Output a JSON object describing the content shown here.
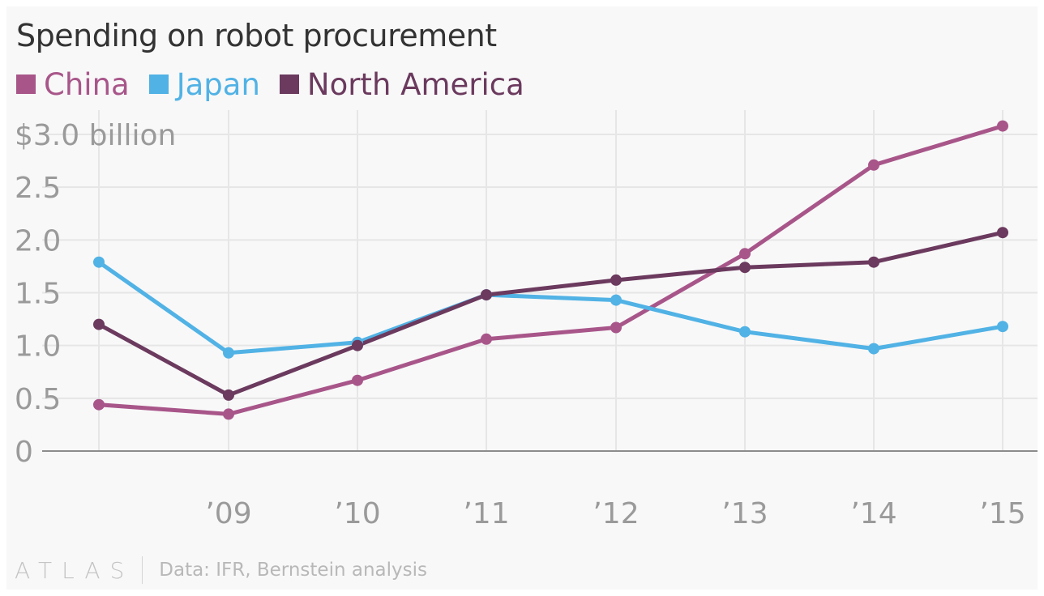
{
  "title": "Spending on robot procurement",
  "legend": [
    {
      "label": "China",
      "color": "#a8568a"
    },
    {
      "label": "Japan",
      "color": "#51b2e5"
    },
    {
      "label": "North America",
      "color": "#6b3a5e"
    }
  ],
  "footer": {
    "logo": "ATLAS",
    "source": "Data: IFR, Bernstein analysis"
  },
  "chart_data": {
    "type": "line",
    "title": "Spending on robot procurement",
    "xlabel": "",
    "ylabel": "",
    "x": [
      "2008",
      "2009",
      "2010",
      "2011",
      "2012",
      "2013",
      "2014",
      "2015"
    ],
    "x_tick_labels": [
      "",
      "’09",
      "’10",
      "’11",
      "’12",
      "’13",
      "’14",
      "’15"
    ],
    "y_tick_values": [
      0,
      0.5,
      1.0,
      1.5,
      2.0,
      2.5,
      3.0
    ],
    "y_tick_labels": [
      "0",
      "0.5",
      "1.0",
      "1.5",
      "2.0",
      "2.5",
      "$3.0 billion"
    ],
    "ylim": [
      0,
      3.0
    ],
    "grid": true,
    "legend_position": "top-left",
    "series": [
      {
        "name": "China",
        "color": "#a8568a",
        "values": [
          0.44,
          0.35,
          0.67,
          1.06,
          1.17,
          1.87,
          2.71,
          3.08
        ]
      },
      {
        "name": "Japan",
        "color": "#51b2e5",
        "values": [
          1.79,
          0.93,
          1.03,
          1.48,
          1.43,
          1.13,
          0.97,
          1.18
        ]
      },
      {
        "name": "North America",
        "color": "#6b3a5e",
        "values": [
          1.2,
          0.53,
          1.0,
          1.48,
          1.62,
          1.74,
          1.79,
          2.07
        ]
      }
    ]
  }
}
